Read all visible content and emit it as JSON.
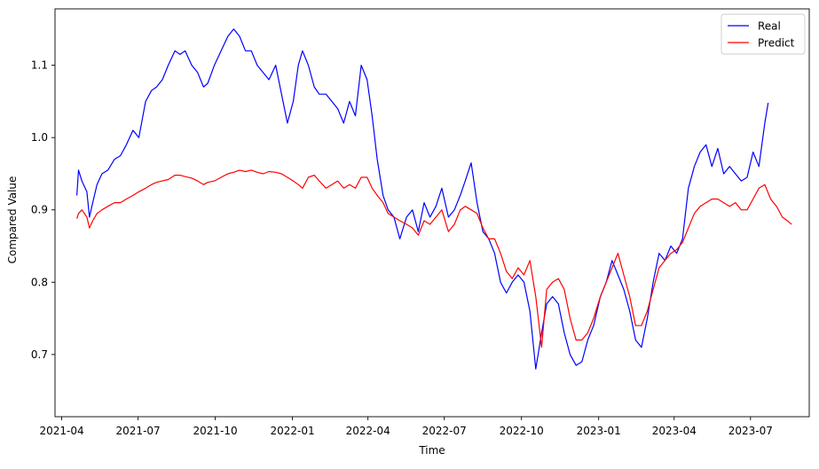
{
  "chart_data": {
    "type": "line",
    "xlabel": "Time",
    "ylabel": "Compared Value",
    "xlim": [
      "2021-03-24",
      "2023-09-09"
    ],
    "ylim": [
      0.614,
      1.178
    ],
    "x_ticks": [
      "2021-04",
      "2021-07",
      "2021-10",
      "2022-01",
      "2022-04",
      "2022-07",
      "2022-10",
      "2023-01",
      "2023-04",
      "2023-07"
    ],
    "x_tick_dates": [
      "2021-04-01",
      "2021-07-01",
      "2021-10-01",
      "2022-01-01",
      "2022-04-01",
      "2022-07-01",
      "2022-10-01",
      "2023-01-01",
      "2023-04-01",
      "2023-07-01"
    ],
    "y_ticks": [
      "0.7",
      "0.8",
      "0.9",
      "1.0",
      "1.1"
    ],
    "y_tick_values": [
      0.7,
      0.8,
      0.9,
      1.0,
      1.1
    ],
    "legend": {
      "position": "upper-right",
      "entries": [
        "Real",
        "Predict"
      ]
    },
    "grid": false,
    "colors": {
      "Real": "#0000ff",
      "Predict": "#ff0000",
      "axis": "#000000"
    },
    "series": [
      {
        "name": "Real",
        "x": [
          "2021-04-19",
          "2021-04-21",
          "2021-04-25",
          "2021-05-01",
          "2021-05-04",
          "2021-05-08",
          "2021-05-13",
          "2021-05-19",
          "2021-05-26",
          "2021-06-03",
          "2021-06-10",
          "2021-06-17",
          "2021-06-25",
          "2021-07-02",
          "2021-07-10",
          "2021-07-17",
          "2021-07-23",
          "2021-07-30",
          "2021-08-06",
          "2021-08-14",
          "2021-08-20",
          "2021-08-26",
          "2021-09-03",
          "2021-09-10",
          "2021-09-17",
          "2021-09-22",
          "2021-09-30",
          "2021-10-08",
          "2021-10-16",
          "2021-10-23",
          "2021-10-30",
          "2021-11-06",
          "2021-11-13",
          "2021-11-20",
          "2021-11-27",
          "2021-12-04",
          "2021-12-12",
          "2021-12-19",
          "2021-12-26",
          "2022-01-02",
          "2022-01-08",
          "2022-01-13",
          "2022-01-20",
          "2022-01-27",
          "2022-02-02",
          "2022-02-10",
          "2022-02-17",
          "2022-02-24",
          "2022-03-03",
          "2022-03-10",
          "2022-03-17",
          "2022-03-24",
          "2022-03-31",
          "2022-04-06",
          "2022-04-12",
          "2022-04-19",
          "2022-04-25",
          "2022-05-02",
          "2022-05-09",
          "2022-05-17",
          "2022-05-24",
          "2022-05-31",
          "2022-06-07",
          "2022-06-14",
          "2022-06-21",
          "2022-06-28",
          "2022-07-06",
          "2022-07-13",
          "2022-07-20",
          "2022-07-26",
          "2022-08-02",
          "2022-08-09",
          "2022-08-16",
          "2022-08-23",
          "2022-08-30",
          "2022-09-06",
          "2022-09-13",
          "2022-09-20",
          "2022-09-27",
          "2022-10-04",
          "2022-10-11",
          "2022-10-18",
          "2022-10-25",
          "2022-10-31",
          "2022-11-07",
          "2022-11-14",
          "2022-11-21",
          "2022-11-28",
          "2022-12-05",
          "2022-12-12",
          "2022-12-19",
          "2022-12-26",
          "2023-01-03",
          "2023-01-10",
          "2023-01-17",
          "2023-01-24",
          "2023-01-31",
          "2023-02-07",
          "2023-02-14",
          "2023-02-21",
          "2023-02-28",
          "2023-03-07",
          "2023-03-14",
          "2023-03-21",
          "2023-03-28",
          "2023-04-04",
          "2023-04-11",
          "2023-04-18",
          "2023-04-25",
          "2023-05-02",
          "2023-05-09",
          "2023-05-16",
          "2023-05-23",
          "2023-05-30",
          "2023-06-06",
          "2023-06-13",
          "2023-06-20",
          "2023-06-27",
          "2023-07-04",
          "2023-07-11",
          "2023-07-18",
          "2023-07-22"
        ],
        "values": [
          0.92,
          0.955,
          0.94,
          0.925,
          0.89,
          0.91,
          0.935,
          0.95,
          0.955,
          0.97,
          0.975,
          0.99,
          1.01,
          1.0,
          1.05,
          1.065,
          1.07,
          1.08,
          1.1,
          1.12,
          1.115,
          1.12,
          1.1,
          1.09,
          1.07,
          1.075,
          1.1,
          1.12,
          1.14,
          1.15,
          1.14,
          1.12,
          1.12,
          1.1,
          1.09,
          1.08,
          1.1,
          1.06,
          1.02,
          1.05,
          1.1,
          1.12,
          1.1,
          1.07,
          1.06,
          1.06,
          1.05,
          1.04,
          1.02,
          1.05,
          1.03,
          1.1,
          1.08,
          1.03,
          0.97,
          0.92,
          0.9,
          0.89,
          0.86,
          0.89,
          0.9,
          0.87,
          0.91,
          0.89,
          0.905,
          0.93,
          0.89,
          0.9,
          0.92,
          0.94,
          0.965,
          0.91,
          0.87,
          0.86,
          0.84,
          0.8,
          0.785,
          0.8,
          0.81,
          0.8,
          0.76,
          0.68,
          0.73,
          0.77,
          0.78,
          0.77,
          0.73,
          0.7,
          0.685,
          0.69,
          0.72,
          0.74,
          0.78,
          0.8,
          0.83,
          0.81,
          0.79,
          0.76,
          0.72,
          0.71,
          0.75,
          0.8,
          0.84,
          0.83,
          0.85,
          0.84,
          0.86,
          0.93,
          0.96,
          0.98,
          0.99,
          0.96,
          0.985,
          0.95,
          0.96,
          0.95,
          0.94,
          0.945,
          0.98,
          0.96,
          1.02,
          1.048
        ]
      },
      {
        "name": "Predict",
        "x": [
          "2021-04-19",
          "2021-04-21",
          "2021-04-25",
          "2021-05-01",
          "2021-05-04",
          "2021-05-08",
          "2021-05-13",
          "2021-05-19",
          "2021-05-26",
          "2021-06-03",
          "2021-06-10",
          "2021-06-17",
          "2021-06-25",
          "2021-07-02",
          "2021-07-10",
          "2021-07-17",
          "2021-07-23",
          "2021-07-30",
          "2021-08-06",
          "2021-08-14",
          "2021-08-20",
          "2021-08-26",
          "2021-09-03",
          "2021-09-10",
          "2021-09-17",
          "2021-09-22",
          "2021-09-30",
          "2021-10-08",
          "2021-10-16",
          "2021-10-23",
          "2021-10-30",
          "2021-11-06",
          "2021-11-13",
          "2021-11-20",
          "2021-11-27",
          "2021-12-04",
          "2021-12-12",
          "2021-12-19",
          "2021-12-26",
          "2022-01-02",
          "2022-01-08",
          "2022-01-13",
          "2022-01-20",
          "2022-01-27",
          "2022-02-02",
          "2022-02-10",
          "2022-02-17",
          "2022-02-24",
          "2022-03-03",
          "2022-03-10",
          "2022-03-17",
          "2022-03-24",
          "2022-03-31",
          "2022-04-06",
          "2022-04-12",
          "2022-04-19",
          "2022-04-25",
          "2022-05-02",
          "2022-05-09",
          "2022-05-17",
          "2022-05-24",
          "2022-05-31",
          "2022-06-07",
          "2022-06-14",
          "2022-06-21",
          "2022-06-28",
          "2022-07-06",
          "2022-07-13",
          "2022-07-20",
          "2022-07-26",
          "2022-08-02",
          "2022-08-09",
          "2022-08-16",
          "2022-08-23",
          "2022-08-30",
          "2022-09-06",
          "2022-09-13",
          "2022-09-20",
          "2022-09-27",
          "2022-10-04",
          "2022-10-11",
          "2022-10-18",
          "2022-10-25",
          "2022-10-31",
          "2022-11-07",
          "2022-11-14",
          "2022-11-21",
          "2022-11-28",
          "2022-12-05",
          "2022-12-12",
          "2022-12-19",
          "2022-12-26",
          "2023-01-03",
          "2023-01-10",
          "2023-01-17",
          "2023-01-24",
          "2023-01-31",
          "2023-02-07",
          "2023-02-14",
          "2023-02-21",
          "2023-02-28",
          "2023-03-07",
          "2023-03-14",
          "2023-03-21",
          "2023-03-28",
          "2023-04-04",
          "2023-04-11",
          "2023-04-18",
          "2023-04-25",
          "2023-05-02",
          "2023-05-09",
          "2023-05-16",
          "2023-05-23",
          "2023-05-30",
          "2023-06-06",
          "2023-06-13",
          "2023-06-20",
          "2023-06-27",
          "2023-07-04",
          "2023-07-11",
          "2023-07-18",
          "2023-07-25",
          "2023-08-01",
          "2023-08-08",
          "2023-08-14",
          "2023-08-19"
        ],
        "values": [
          0.888,
          0.895,
          0.9,
          0.89,
          0.875,
          0.885,
          0.895,
          0.9,
          0.905,
          0.91,
          0.91,
          0.915,
          0.92,
          0.925,
          0.93,
          0.935,
          0.938,
          0.94,
          0.942,
          0.948,
          0.948,
          0.946,
          0.944,
          0.94,
          0.935,
          0.938,
          0.94,
          0.945,
          0.95,
          0.952,
          0.955,
          0.953,
          0.955,
          0.952,
          0.95,
          0.953,
          0.952,
          0.95,
          0.945,
          0.94,
          0.935,
          0.93,
          0.945,
          0.948,
          0.94,
          0.93,
          0.935,
          0.94,
          0.93,
          0.935,
          0.93,
          0.945,
          0.945,
          0.93,
          0.92,
          0.91,
          0.895,
          0.89,
          0.885,
          0.88,
          0.875,
          0.865,
          0.885,
          0.88,
          0.89,
          0.9,
          0.87,
          0.88,
          0.9,
          0.905,
          0.9,
          0.895,
          0.875,
          0.86,
          0.86,
          0.84,
          0.815,
          0.805,
          0.82,
          0.81,
          0.83,
          0.78,
          0.71,
          0.79,
          0.8,
          0.805,
          0.79,
          0.75,
          0.72,
          0.72,
          0.73,
          0.75,
          0.78,
          0.8,
          0.82,
          0.84,
          0.81,
          0.78,
          0.74,
          0.74,
          0.76,
          0.79,
          0.82,
          0.83,
          0.84,
          0.845,
          0.855,
          0.875,
          0.895,
          0.905,
          0.91,
          0.915,
          0.915,
          0.91,
          0.905,
          0.91,
          0.9,
          0.9,
          0.915,
          0.93,
          0.935,
          0.915,
          0.905,
          0.89,
          0.885,
          0.88
        ]
      }
    ]
  }
}
